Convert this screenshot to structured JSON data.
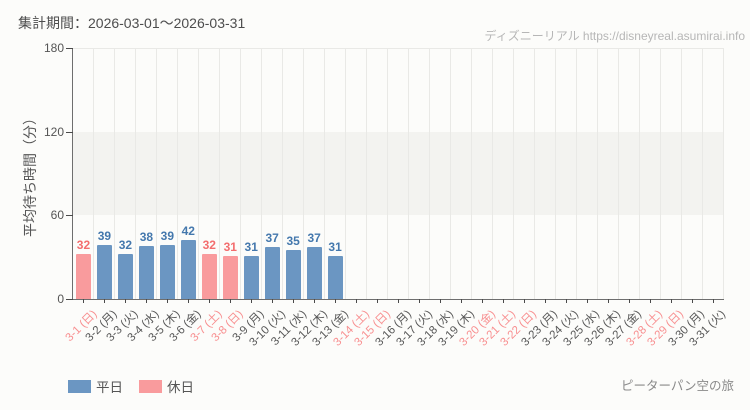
{
  "header": {
    "period_label": "集計期間：2026-03-01～2026-03-31",
    "watermark": "ディズニーリアル https://disneyreal.asumirai.info"
  },
  "footer": {
    "attraction_name": "ピーターパン空の旅"
  },
  "legend": [
    {
      "label": "平日",
      "color": "#6b96c2"
    },
    {
      "label": "休日",
      "color": "#f99b9d"
    }
  ],
  "colors": {
    "weekday_bar": "#6b96c2",
    "holiday_bar": "#f99b9d",
    "weekday_value_label": "#4478ad",
    "holiday_value_label": "#f36d6e",
    "weekday_axis_label": "#575757",
    "holiday_axis_label": "#f88f90",
    "band": "#f3f3f0",
    "grid": "#e9e9e6"
  },
  "chart_data": {
    "type": "bar",
    "title": "",
    "xlabel": "",
    "ylabel": "平均待ち時間（分）",
    "ylim": [
      0,
      180
    ],
    "yticks": [
      0,
      60,
      120,
      180
    ],
    "shaded_band_y": [
      60,
      120
    ],
    "legend_position": "bottom-left",
    "categories": [
      "3-1 (日)",
      "3-2 (月)",
      "3-3 (火)",
      "3-4 (水)",
      "3-5 (木)",
      "3-6 (金)",
      "3-7 (土)",
      "3-8 (日)",
      "3-9 (月)",
      "3-10 (火)",
      "3-11 (水)",
      "3-12 (木)",
      "3-13 (金)",
      "3-14 (土)",
      "3-15 (日)",
      "3-16 (月)",
      "3-17 (火)",
      "3-18 (水)",
      "3-19 (木)",
      "3-20 (金)",
      "3-21 (土)",
      "3-22 (日)",
      "3-23 (月)",
      "3-24 (火)",
      "3-25 (水)",
      "3-26 (木)",
      "3-27 (金)",
      "3-28 (土)",
      "3-29 (日)",
      "3-30 (月)",
      "3-31 (火)"
    ],
    "days": [
      {
        "label": "3-1 (日)",
        "type": "holiday",
        "value": 32
      },
      {
        "label": "3-2 (月)",
        "type": "weekday",
        "value": 39
      },
      {
        "label": "3-3 (火)",
        "type": "weekday",
        "value": 32
      },
      {
        "label": "3-4 (水)",
        "type": "weekday",
        "value": 38
      },
      {
        "label": "3-5 (木)",
        "type": "weekday",
        "value": 39
      },
      {
        "label": "3-6 (金)",
        "type": "weekday",
        "value": 42
      },
      {
        "label": "3-7 (土)",
        "type": "holiday",
        "value": 32
      },
      {
        "label": "3-8 (日)",
        "type": "holiday",
        "value": 31
      },
      {
        "label": "3-9 (月)",
        "type": "weekday",
        "value": 31
      },
      {
        "label": "3-10 (火)",
        "type": "weekday",
        "value": 37
      },
      {
        "label": "3-11 (水)",
        "type": "weekday",
        "value": 35
      },
      {
        "label": "3-12 (木)",
        "type": "weekday",
        "value": 37
      },
      {
        "label": "3-13 (金)",
        "type": "weekday",
        "value": 31
      },
      {
        "label": "3-14 (土)",
        "type": "holiday",
        "value": null
      },
      {
        "label": "3-15 (日)",
        "type": "holiday",
        "value": null
      },
      {
        "label": "3-16 (月)",
        "type": "weekday",
        "value": null
      },
      {
        "label": "3-17 (火)",
        "type": "weekday",
        "value": null
      },
      {
        "label": "3-18 (水)",
        "type": "weekday",
        "value": null
      },
      {
        "label": "3-19 (木)",
        "type": "weekday",
        "value": null
      },
      {
        "label": "3-20 (金)",
        "type": "holiday",
        "value": null
      },
      {
        "label": "3-21 (土)",
        "type": "holiday",
        "value": null
      },
      {
        "label": "3-22 (日)",
        "type": "holiday",
        "value": null
      },
      {
        "label": "3-23 (月)",
        "type": "weekday",
        "value": null
      },
      {
        "label": "3-24 (火)",
        "type": "weekday",
        "value": null
      },
      {
        "label": "3-25 (水)",
        "type": "weekday",
        "value": null
      },
      {
        "label": "3-26 (木)",
        "type": "weekday",
        "value": null
      },
      {
        "label": "3-27 (金)",
        "type": "weekday",
        "value": null
      },
      {
        "label": "3-28 (土)",
        "type": "holiday",
        "value": null
      },
      {
        "label": "3-29 (日)",
        "type": "holiday",
        "value": null
      },
      {
        "label": "3-30 (月)",
        "type": "weekday",
        "value": null
      },
      {
        "label": "3-31 (火)",
        "type": "weekday",
        "value": null
      }
    ]
  }
}
